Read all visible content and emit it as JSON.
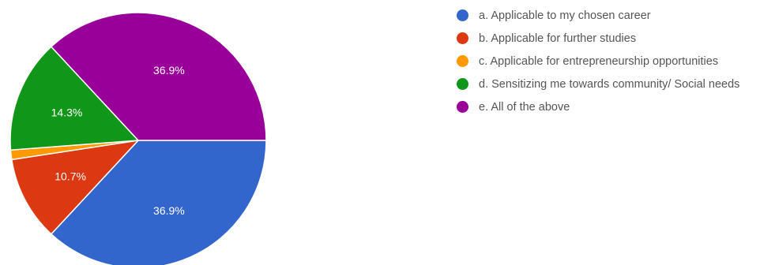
{
  "chart_data": {
    "type": "pie",
    "categories": [
      "a. Applicable to my chosen career",
      "b. Applicable for further studies",
      "c. Applicable for entrepreneurship opportunities",
      "d. Sensitizing me towards community/ Social needs",
      "e. All of the above"
    ],
    "values": [
      36.9,
      10.7,
      1.2,
      14.3,
      36.9
    ],
    "data_labels": [
      "36.9%",
      "10.7%",
      "",
      "14.3%",
      "36.9%"
    ],
    "colors": [
      "#3366cc",
      "#dc3912",
      "#ff9900",
      "#109618",
      "#990099"
    ],
    "label_color": "#ffffff",
    "legend_position": "right"
  }
}
